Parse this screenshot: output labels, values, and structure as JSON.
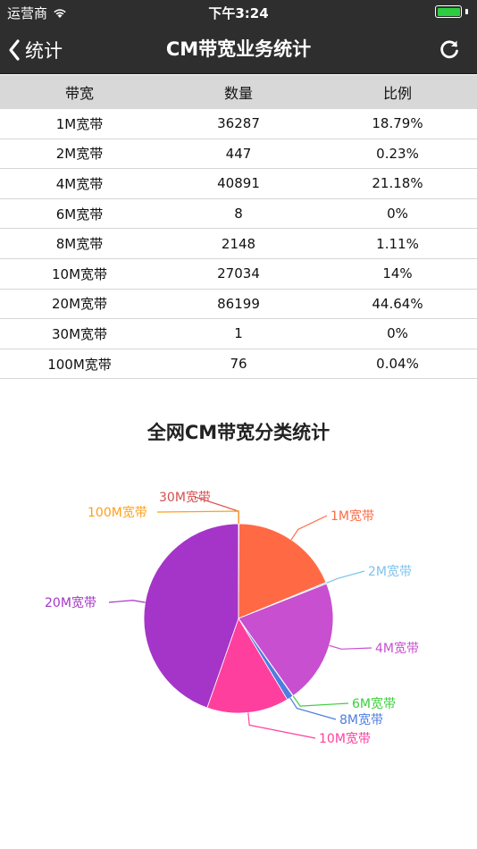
{
  "status_bar": {
    "carrier": "运营商",
    "time": "下午3:24"
  },
  "nav": {
    "back_label": "统计",
    "title": "CM带宽业务统计"
  },
  "table": {
    "headers": [
      "带宽",
      "数量",
      "比例"
    ],
    "rows": [
      [
        "1M宽带",
        "36287",
        "18.79%"
      ],
      [
        "2M宽带",
        "447",
        "0.23%"
      ],
      [
        "4M宽带",
        "40891",
        "21.18%"
      ],
      [
        "6M宽带",
        "8",
        "0%"
      ],
      [
        "8M宽带",
        "2148",
        "1.11%"
      ],
      [
        "10M宽带",
        "27034",
        "14%"
      ],
      [
        "20M宽带",
        "86199",
        "44.64%"
      ],
      [
        "30M宽带",
        "1",
        "0%"
      ],
      [
        "100M宽带",
        "76",
        "0.04%"
      ]
    ]
  },
  "chart_data": {
    "type": "pie",
    "title": "全网CM带宽分类统计",
    "categories": [
      "1M宽带",
      "2M宽带",
      "4M宽带",
      "6M宽带",
      "8M宽带",
      "10M宽带",
      "20M宽带",
      "30M宽带",
      "100M宽带"
    ],
    "values": [
      36287,
      447,
      40891,
      8,
      2148,
      27034,
      86199,
      1,
      76
    ],
    "colors": [
      "#ff6a45",
      "#7fc3ec",
      "#c84fd0",
      "#3bcf3b",
      "#4d7de0",
      "#ff3f9e",
      "#a535c8",
      "#d64f4f",
      "#ff9f1a"
    ],
    "label_positions": [
      "right",
      "right",
      "right",
      "right",
      "right",
      "right",
      "left",
      "top",
      "left"
    ]
  }
}
